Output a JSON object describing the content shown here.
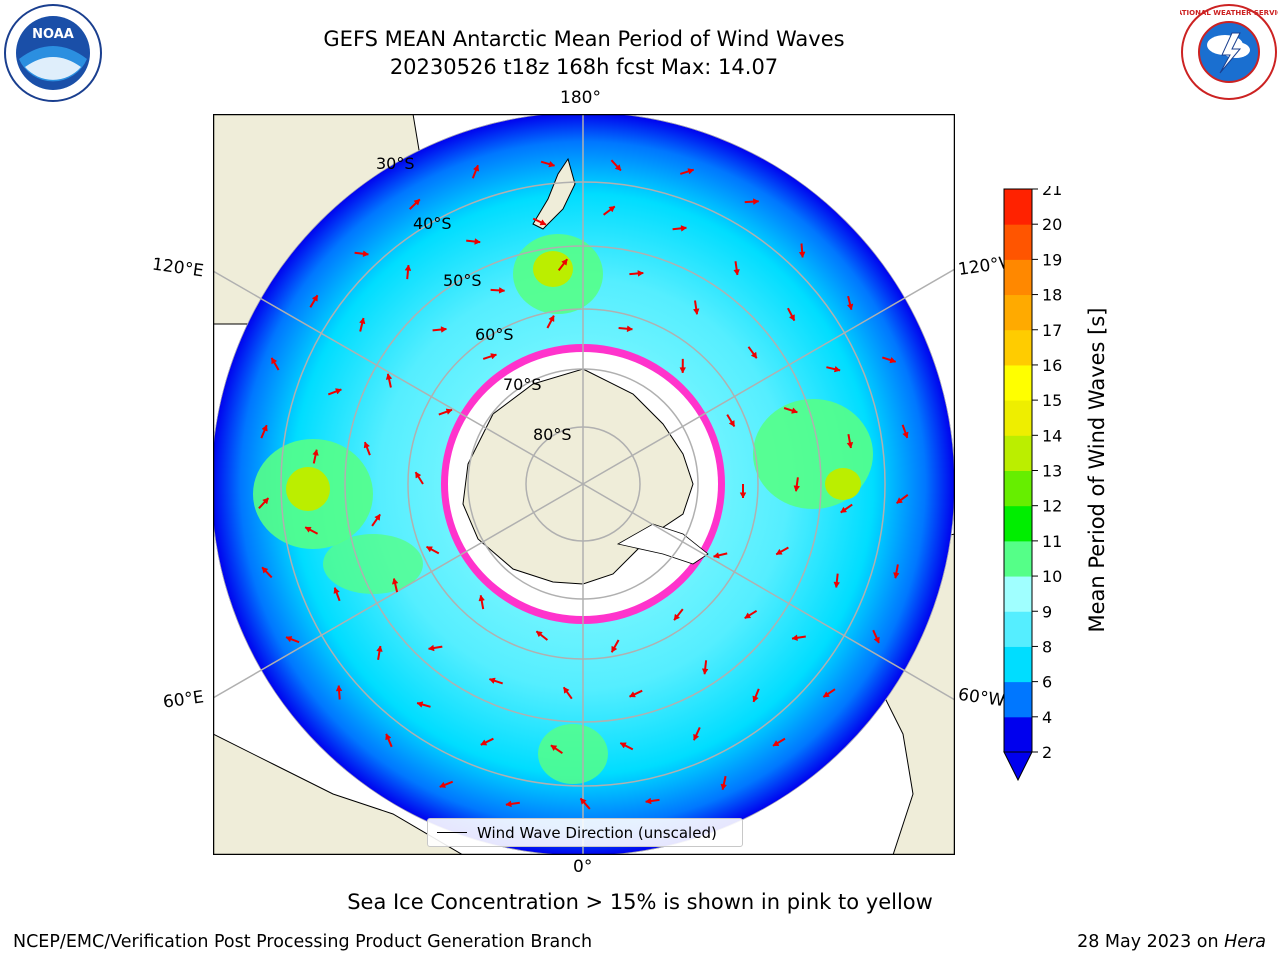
{
  "title": {
    "line1": "GEFS MEAN Antarctic Mean Period of Wind Waves",
    "line2": "20230526 t18z 168h fcst   Max: 14.07"
  },
  "logos": {
    "left": {
      "text": "NOAA",
      "icon": "noaa-logo"
    },
    "right": {
      "text": "NATIONAL WEATHER SERVICE",
      "icon": "nws-logo"
    }
  },
  "map": {
    "projection": "south-polar-stereographic",
    "longitude_labels": {
      "top": "180°",
      "bottom": "0°",
      "left_upper": "120°E",
      "left_lower": "60°E",
      "right_upper": "120°W",
      "right_lower": "60°W"
    },
    "latitude_labels": [
      "30°S",
      "40°S",
      "50°S",
      "60°S",
      "70°S",
      "80°S"
    ],
    "legend_label": "Wind Wave Direction (unscaled)",
    "colors": {
      "land": "#efedd9",
      "ice_edge": "#ff33cc"
    }
  },
  "colorbar": {
    "label": "Mean Period of Wind Waves [s]",
    "ticks": [
      "21",
      "20",
      "19",
      "18",
      "17",
      "16",
      "15",
      "14",
      "13",
      "12",
      "11",
      "10",
      "9",
      "8",
      "6",
      "4",
      "2"
    ],
    "colors": [
      "#0000ee",
      "#0077ff",
      "#00ddff",
      "#55eeff",
      "#a0ffff",
      "#55ff88",
      "#00ee00",
      "#66ee00",
      "#bbee00",
      "#eeee00",
      "#ffff00",
      "#ffcc00",
      "#ffaa00",
      "#ff8800",
      "#ff5500",
      "#ff2200",
      "#ff0000"
    ]
  },
  "subtitle": "Sea Ice Concentration > 15% is shown in pink to yellow",
  "footer": {
    "left": "NCEP/EMC/Verification Post Processing Product Generation Branch",
    "right_prefix": "28 May 2023 on ",
    "right_italic": "Hera"
  }
}
